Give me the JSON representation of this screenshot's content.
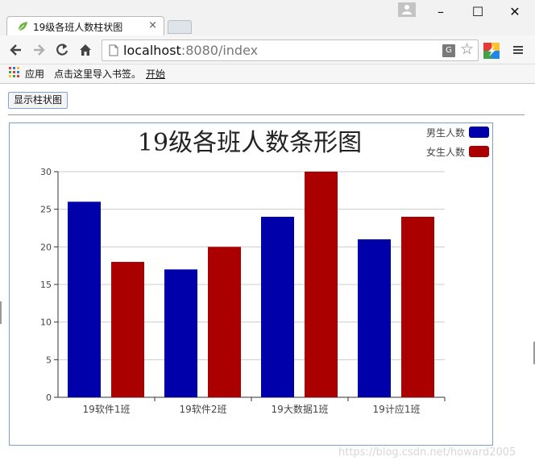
{
  "browser": {
    "tab_title": "19级各班人数柱状图",
    "close_glyph": "×",
    "min_glyph": "–",
    "max_glyph": "☐",
    "win_close_glyph": "✕",
    "url_host": "localhost",
    "url_rest": ":8080/index",
    "translate_glyph": "G",
    "star_glyph": "☆",
    "bookmarks": {
      "apps": "应用",
      "import": "点击这里导入书签。",
      "start": "开始"
    }
  },
  "page": {
    "show_button": "显示柱状图",
    "watermark": "https://blog.csdn.net/howard2005"
  },
  "chart_data": {
    "type": "bar",
    "title": "19级各班人数条形图",
    "categories": [
      "19软件1班",
      "19软件2班",
      "19大数据1班",
      "19计应1班"
    ],
    "series": [
      {
        "name": "男生人数",
        "color": "#0000aa",
        "values": [
          26,
          17,
          24,
          21
        ]
      },
      {
        "name": "女生人数",
        "color": "#aa0000",
        "values": [
          18,
          20,
          30,
          24
        ]
      }
    ],
    "ylim": [
      0,
      30
    ],
    "yticks": [
      0,
      5,
      10,
      15,
      20,
      25,
      30
    ],
    "grid": true,
    "legend_position": "top-right"
  }
}
